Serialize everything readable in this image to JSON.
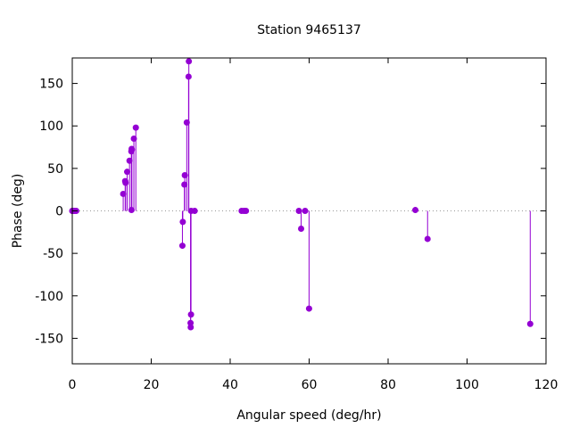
{
  "chart_data": {
    "type": "scatter",
    "style": "impulses-with-points",
    "title": "Station 9465137",
    "xlabel": "Angular speed (deg/hr)",
    "ylabel": "Phase (deg)",
    "xlim": [
      0,
      120
    ],
    "ylim": [
      -180,
      180
    ],
    "xticks": [
      0,
      20,
      40,
      60,
      80,
      100,
      120
    ],
    "yticks": [
      -150,
      -100,
      -50,
      0,
      50,
      100,
      150
    ],
    "zero_line": true,
    "grid": false,
    "legend": "none",
    "color": "#9400d3",
    "points": [
      {
        "x": 0.0,
        "y": 0
      },
      {
        "x": 0.04,
        "y": 0
      },
      {
        "x": 0.08,
        "y": 0
      },
      {
        "x": 0.5,
        "y": 0
      },
      {
        "x": 0.55,
        "y": 0
      },
      {
        "x": 1.0,
        "y": 0
      },
      {
        "x": 12.9,
        "y": 20
      },
      {
        "x": 13.4,
        "y": 35
      },
      {
        "x": 13.5,
        "y": 33
      },
      {
        "x": 13.9,
        "y": 46
      },
      {
        "x": 14.5,
        "y": 59
      },
      {
        "x": 14.96,
        "y": 70
      },
      {
        "x": 15.0,
        "y": 1
      },
      {
        "x": 15.04,
        "y": 73
      },
      {
        "x": 15.1,
        "y": 72
      },
      {
        "x": 15.6,
        "y": 85
      },
      {
        "x": 16.1,
        "y": 98
      },
      {
        "x": 27.9,
        "y": -41
      },
      {
        "x": 28.0,
        "y": -13
      },
      {
        "x": 28.4,
        "y": 31
      },
      {
        "x": 28.5,
        "y": 42
      },
      {
        "x": 29.0,
        "y": 104
      },
      {
        "x": 29.46,
        "y": 158
      },
      {
        "x": 29.53,
        "y": 176
      },
      {
        "x": 29.96,
        "y": -132
      },
      {
        "x": 30.0,
        "y": -137
      },
      {
        "x": 30.08,
        "y": -122
      },
      {
        "x": 30.1,
        "y": 0
      },
      {
        "x": 31.0,
        "y": 0
      },
      {
        "x": 42.9,
        "y": 0
      },
      {
        "x": 43.5,
        "y": 0
      },
      {
        "x": 44.0,
        "y": 0
      },
      {
        "x": 57.4,
        "y": 0
      },
      {
        "x": 57.97,
        "y": -21
      },
      {
        "x": 58.98,
        "y": 0
      },
      {
        "x": 59.98,
        "y": -115
      },
      {
        "x": 86.9,
        "y": 1
      },
      {
        "x": 90.0,
        "y": -33
      },
      {
        "x": 116.0,
        "y": -133
      }
    ]
  }
}
